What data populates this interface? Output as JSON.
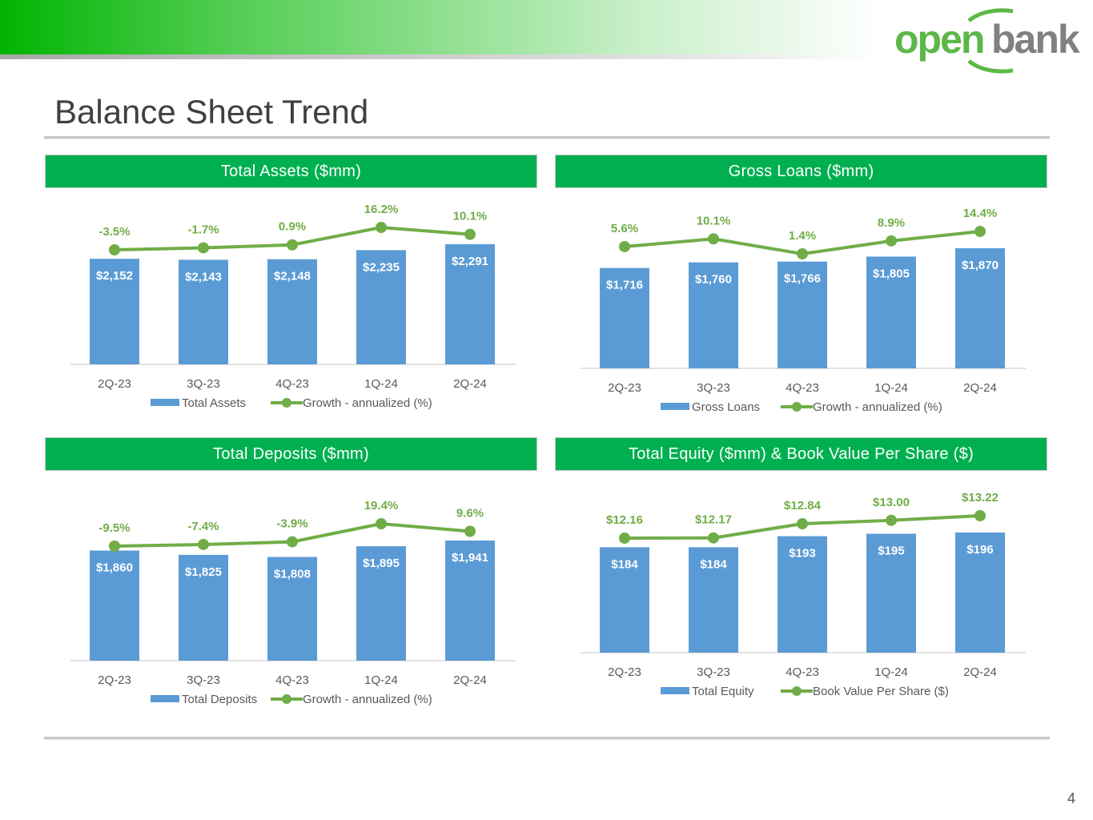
{
  "header": {
    "title": "Balance Sheet Trend",
    "logo_text": "openbank",
    "page_number": "4"
  },
  "colors": {
    "bar": "#5b9bd5",
    "line": "#70ad47",
    "header": "#00b050",
    "label": "#70ad47"
  },
  "chart_data": [
    {
      "type": "bar+line",
      "title": "Total Assets ($mm)",
      "categories": [
        "2Q-23",
        "3Q-23",
        "4Q-23",
        "1Q-24",
        "2Q-24"
      ],
      "series": [
        {
          "name": "Total Assets",
          "type": "bar",
          "values": [
            2152,
            2143,
            2148,
            2235,
            2291
          ],
          "labels": [
            "$2,152",
            "$2,143",
            "$2,148",
            "$2,235",
            "$2,291"
          ]
        },
        {
          "name": "Growth - annualized (%)",
          "type": "line",
          "values": [
            -3.5,
            -1.7,
            0.9,
            16.2,
            10.1
          ],
          "labels": [
            "-3.5%",
            "-1.7%",
            "0.9%",
            "16.2%",
            "10.1%"
          ]
        }
      ],
      "legend": "bottom"
    },
    {
      "type": "bar+line",
      "title": "Gross Loans ($mm)",
      "categories": [
        "2Q-23",
        "3Q-23",
        "4Q-23",
        "1Q-24",
        "2Q-24"
      ],
      "series": [
        {
          "name": "Gross Loans",
          "type": "bar",
          "values": [
            1716,
            1760,
            1766,
            1805,
            1870
          ],
          "labels": [
            "$1,716",
            "$1,760",
            "$1,766",
            "$1,805",
            "$1,870"
          ]
        },
        {
          "name": "Growth - annualized (%)",
          "type": "line",
          "values": [
            5.6,
            10.1,
            1.4,
            8.9,
            14.4
          ],
          "labels": [
            "5.6%",
            "10.1%",
            "1.4%",
            "8.9%",
            "14.4%"
          ]
        }
      ],
      "legend": "bottom"
    },
    {
      "type": "bar+line",
      "title": "Total Deposits ($mm)",
      "categories": [
        "2Q-23",
        "3Q-23",
        "4Q-23",
        "1Q-24",
        "2Q-24"
      ],
      "series": [
        {
          "name": "Total Deposits",
          "type": "bar",
          "values": [
            1860,
            1825,
            1808,
            1895,
            1941
          ],
          "labels": [
            "$1,860",
            "$1,825",
            "$1,808",
            "$1,895",
            "$1,941"
          ]
        },
        {
          "name": "Growth - annualized (%)",
          "type": "line",
          "values": [
            -9.5,
            -7.4,
            -3.9,
            19.4,
            9.6
          ],
          "labels": [
            "-9.5%",
            "-7.4%",
            "-3.9%",
            "19.4%",
            "9.6%"
          ]
        }
      ],
      "legend": "bottom"
    },
    {
      "type": "bar+line",
      "title": "Total Equity ($mm) & Book Value Per Share ($)",
      "categories": [
        "2Q-23",
        "3Q-23",
        "4Q-23",
        "1Q-24",
        "2Q-24"
      ],
      "series": [
        {
          "name": "Total Equity",
          "type": "bar",
          "values": [
            184,
            184,
            193,
            195,
            196
          ],
          "labels": [
            "$184",
            "$184",
            "$193",
            "$195",
            "$196"
          ]
        },
        {
          "name": "Book Value Per Share ($)",
          "type": "line",
          "values": [
            12.16,
            12.17,
            12.84,
            13.0,
            13.22
          ],
          "labels": [
            "$12.16",
            "$12.17",
            "$12.84",
            "$13.00",
            "$13.22"
          ]
        }
      ],
      "legend": "bottom"
    }
  ]
}
